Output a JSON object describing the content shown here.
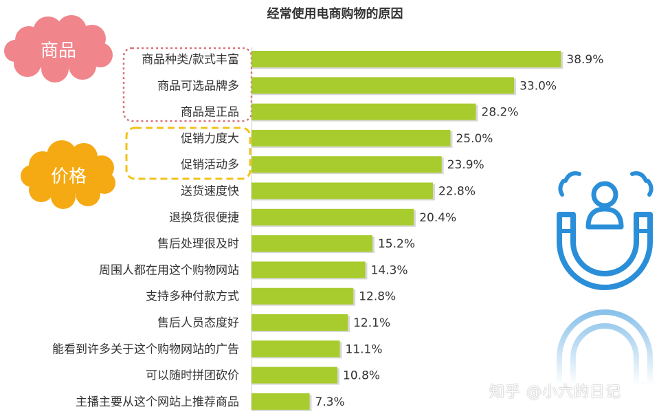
{
  "chart_data": {
    "type": "bar",
    "orientation": "horizontal",
    "title": "经常使用电商购物的原因",
    "categories": [
      "商品种类/款式丰富",
      "商品可选品牌多",
      "商品是正品",
      "促销力度大",
      "促销活动多",
      "送货速度快",
      "退换货很便捷",
      "售后处理很及时",
      "周围人都在用这个购物网站",
      "支持多种付款方式",
      "售后人员态度好",
      "能看到许多关于这个购物网站的广告",
      "可以随时拼团砍价",
      "主播主要从这个网站上推荐商品"
    ],
    "values": [
      38.9,
      33.0,
      28.2,
      25.0,
      23.9,
      22.8,
      20.4,
      15.2,
      14.3,
      12.8,
      12.1,
      11.1,
      10.8,
      7.3
    ],
    "value_labels": [
      "38.9%",
      "33.0%",
      "28.2%",
      "25.0%",
      "23.9%",
      "22.8%",
      "20.4%",
      "15.2%",
      "14.3%",
      "12.8%",
      "12.1%",
      "11.1%",
      "10.8%",
      "7.3%"
    ],
    "bar_color": "#a8cc2e",
    "xlim": [
      0,
      40
    ],
    "grid": false,
    "legend": "none"
  },
  "annotations": {
    "group_goods": {
      "label": "商品",
      "color": "#f0858c",
      "border_color": "#d9707a"
    },
    "group_price": {
      "label": "价格",
      "color": "#f5a912",
      "border_color": "#f2c21a"
    }
  },
  "decoration": {
    "icon": "magnet-person-icon",
    "color": "#2a8fd8"
  },
  "watermark": "知乎 @小六的日记"
}
